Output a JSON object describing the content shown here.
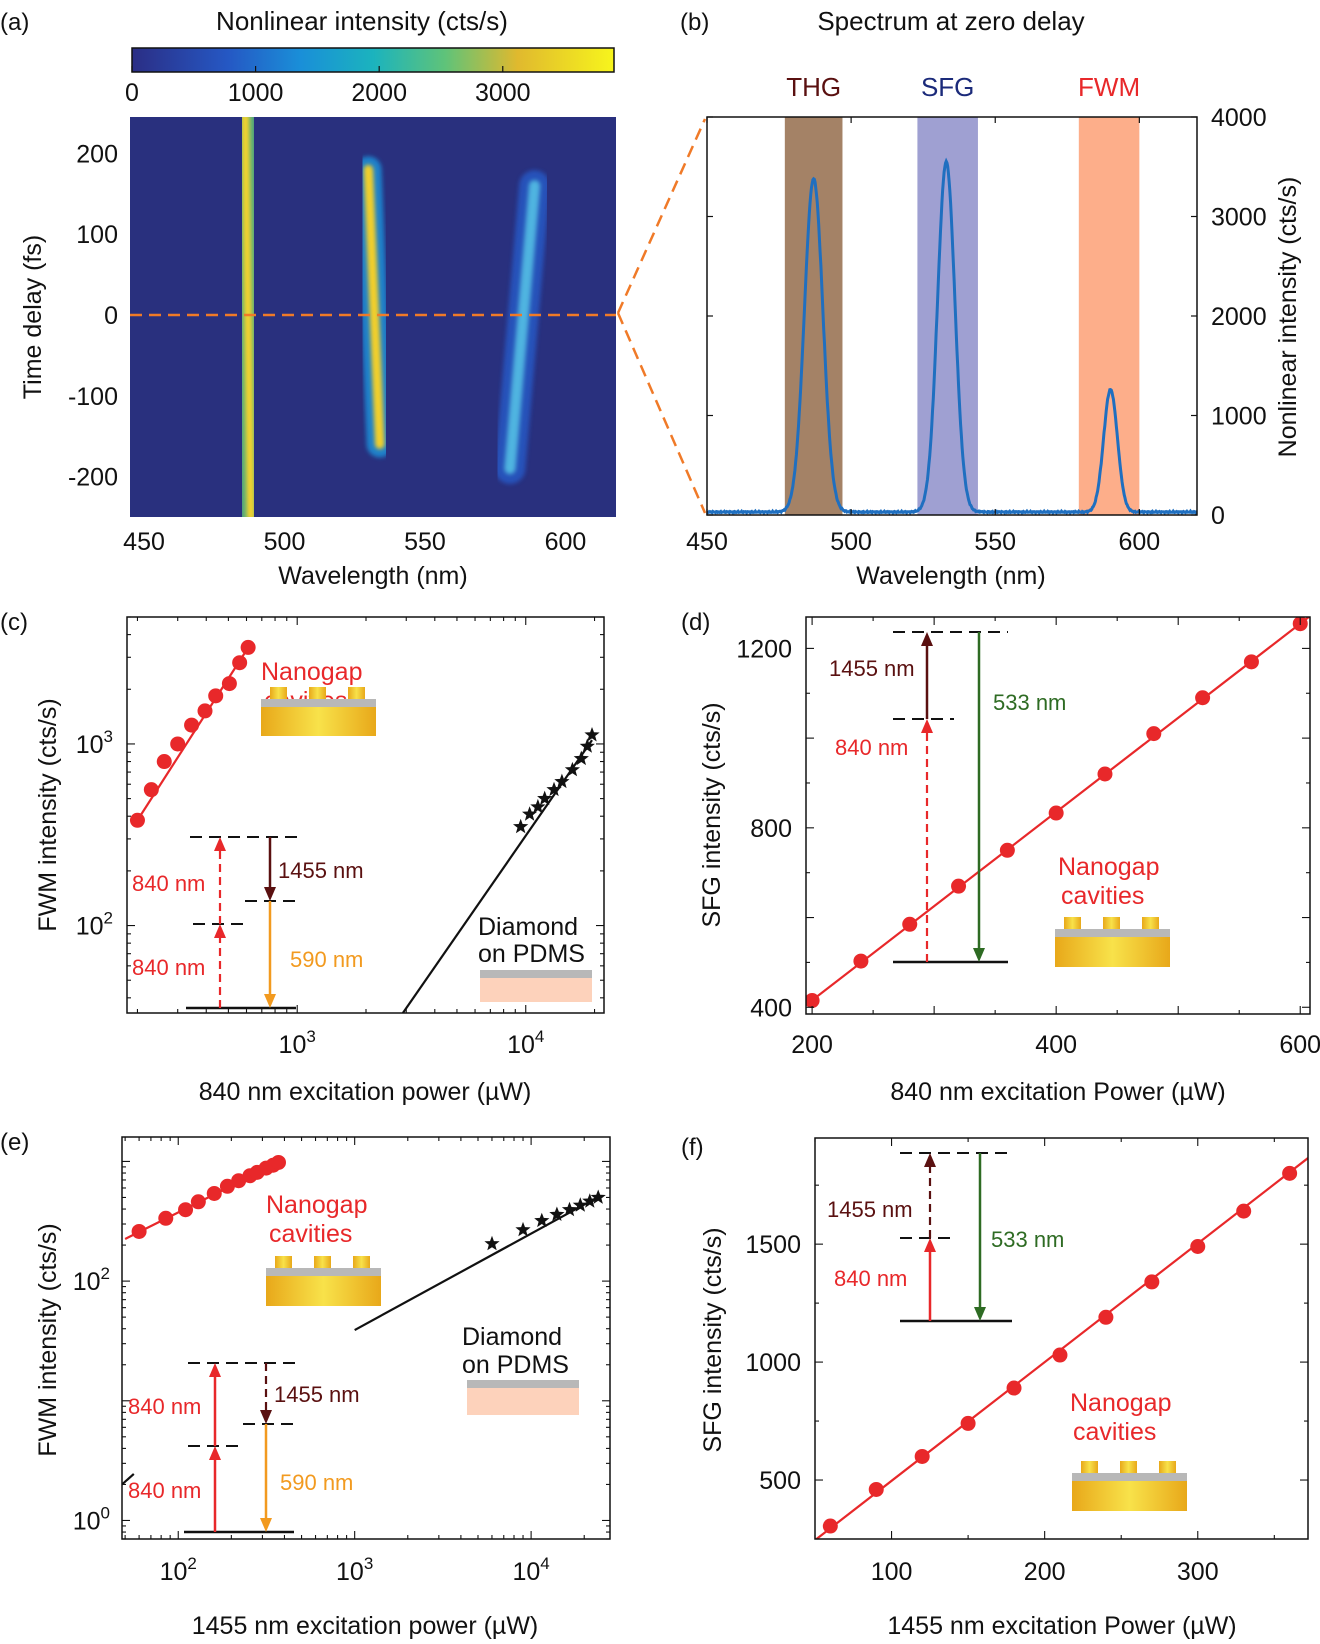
{
  "colors": {
    "red": "#e8282a",
    "black": "#111111",
    "blue": "#1f6fc0",
    "dark_red": "#5a1010",
    "orange": "#f29a1f",
    "green": "#2e6b23",
    "heat_bg": "#29307e",
    "gray": "#b8b8b8",
    "pink": "#fdd2bb",
    "gold": "#e5b632"
  },
  "chart_data": [
    {
      "id": "a",
      "panel_label": "(a)",
      "type": "heatmap",
      "title": "Nonlinear intensity (cts/s)",
      "xlabel": "Wavelength (nm)",
      "ylabel": "Time delay (fs)",
      "xlim": [
        445,
        618
      ],
      "ylim": [
        -250,
        245
      ],
      "x_ticks": [
        "450",
        "500",
        "550",
        "600"
      ],
      "y_ticks": [
        "200",
        "100",
        "0",
        "-100",
        "-200"
      ],
      "colorbar_ticks": [
        "0",
        "1000",
        "2000",
        "3000"
      ],
      "colorbar_range": [
        0,
        3900
      ],
      "zero_delay_marker": 0,
      "bands": [
        {
          "name": "THG",
          "center_nm": 487,
          "delay_range": [
            -250,
            245
          ],
          "peak": 3600,
          "tilt_nm_per_fs": -0.004
        },
        {
          "name": "SFG",
          "center_nm": 532,
          "delay_range": [
            -160,
            180
          ],
          "peak": 3500,
          "tilt_nm_per_fs": -0.012
        },
        {
          "name": "FWM",
          "center_nm": 585,
          "delay_range": [
            -190,
            160
          ],
          "peak": 1600,
          "tilt_nm_per_fs": 0.025
        }
      ]
    },
    {
      "id": "b",
      "panel_label": "(b)",
      "type": "line",
      "title": "Spectrum at zero delay",
      "xlabel": "Wavelength (nm)",
      "ylabel": "Nonlinear intensity (cts/s)",
      "xlim": [
        450,
        620
      ],
      "ylim": [
        0,
        4000
      ],
      "x_ticks": [
        "450",
        "500",
        "550",
        "600"
      ],
      "y_ticks": [
        "0",
        "1000",
        "2000",
        "3000",
        "4000"
      ],
      "baseline": 30,
      "peaks": [
        {
          "label": "THG",
          "center": 487,
          "height": 3350,
          "width_nm": 3.2
        },
        {
          "label": "SFG",
          "center": 533,
          "height": 3520,
          "width_nm": 3.0
        },
        {
          "label": "FWM",
          "center": 590,
          "height": 1230,
          "width_nm": 2.4
        }
      ],
      "shaded_bands": [
        {
          "label": "THG",
          "range": [
            477,
            497
          ],
          "color": "#a48266"
        },
        {
          "label": "SFG",
          "range": [
            523,
            544
          ],
          "color": "#9fa0d2"
        },
        {
          "label": "FWM",
          "range": [
            579,
            600
          ],
          "color": "#fdae8a"
        }
      ],
      "band_label_colors": [
        "#5a1010",
        "#1b2a7a",
        "#e8282a"
      ]
    },
    {
      "id": "c",
      "panel_label": "(c)",
      "type": "scatter",
      "xscale": "log",
      "yscale": "log",
      "xlabel": "840 nm excitation power (µW)",
      "ylabel": "FWM intensity (cts/s)",
      "xlim": [
        180,
        22000
      ],
      "ylim": [
        33,
        5000
      ],
      "x_ticks": [
        {
          "value": 1000,
          "base": "10",
          "exp": "3"
        },
        {
          "value": 10000,
          "base": "10",
          "exp": "4"
        }
      ],
      "y_ticks": [
        {
          "value": 100,
          "base": "10",
          "exp": "2"
        },
        {
          "value": 1000,
          "base": "10",
          "exp": "3"
        }
      ],
      "series": [
        {
          "name": "Nanogap cavities",
          "x": [
            200,
            230,
            262,
            300,
            345,
            395,
            440,
            505,
            560,
            610
          ],
          "y": [
            380,
            560,
            800,
            1000,
            1270,
            1520,
            1840,
            2150,
            2800,
            3400
          ],
          "fit": {
            "x": [
              200,
              620
            ],
            "y": [
              380,
              3500
            ]
          }
        },
        {
          "name": "Diamond on PDMS",
          "x": [
            9500,
            10400,
            11300,
            12100,
            13300,
            14400,
            16000,
            17500,
            18600,
            19500
          ],
          "y": [
            350,
            410,
            450,
            500,
            560,
            620,
            720,
            830,
            970,
            1120
          ],
          "fit": {
            "x": [
              2900,
              19500
            ],
            "y": [
              33,
              1050
            ]
          }
        }
      ],
      "labels": {
        "nanogap_line1": "Nanogap",
        "nanogap_line2": "cavities",
        "diamond_line1": "Diamond",
        "diamond_line2": "on PDMS"
      },
      "energy_diagram": {
        "label_a": "840 nm",
        "label_b": "840 nm",
        "label_c": "1455 nm",
        "label_d": "590 nm"
      }
    },
    {
      "id": "d",
      "panel_label": "(d)",
      "type": "scatter",
      "xlabel": "840 nm excitation Power (µW)",
      "ylabel": "SFG intensity (cts/s)",
      "xlim": [
        195,
        608
      ],
      "ylim": [
        385,
        1270
      ],
      "x_ticks": [
        "200",
        "400",
        "600"
      ],
      "x_ticks_values": [
        200,
        400,
        600
      ],
      "y_ticks": [
        "400",
        "800",
        "1200"
      ],
      "y_ticks_values": [
        400,
        800,
        1200
      ],
      "series": [
        {
          "name": "Nanogap cavities",
          "x": [
            200,
            240,
            280,
            320,
            360,
            400,
            440,
            480,
            520,
            560,
            600
          ],
          "y": [
            415,
            503,
            585,
            670,
            750,
            833,
            920,
            1010,
            1090,
            1170,
            1255
          ],
          "fit": {
            "x": [
              195,
              608
            ],
            "y": [
              405,
              1272
            ]
          }
        }
      ],
      "labels": {
        "nanogap_line1": "Nanogap",
        "nanogap_line2": "cavities"
      },
      "energy_diagram": {
        "label_a": "1455 nm",
        "label_b": "840 nm",
        "label_c": "533 nm"
      }
    },
    {
      "id": "e",
      "panel_label": "(e)",
      "type": "scatter",
      "xscale": "log",
      "yscale": "log",
      "xlabel": "1455 nm excitation power (µW)",
      "ylabel": "FWM intensity (cts/s)",
      "xlim": [
        48,
        28000
      ],
      "ylim": [
        0.7,
        1600
      ],
      "x_ticks": [
        {
          "value": 100,
          "base": "10",
          "exp": "2"
        },
        {
          "value": 1000,
          "base": "10",
          "exp": "3"
        },
        {
          "value": 10000,
          "base": "10",
          "exp": "4"
        }
      ],
      "y_ticks": [
        {
          "value": 1,
          "base": "10",
          "exp": "0"
        },
        {
          "value": 100,
          "base": "10",
          "exp": "2"
        }
      ],
      "series": [
        {
          "name": "Nanogap cavities",
          "x": [
            60,
            85,
            110,
            130,
            160,
            190,
            220,
            255,
            280,
            315,
            345,
            370
          ],
          "y": [
            260,
            335,
            395,
            460,
            540,
            620,
            690,
            760,
            810,
            880,
            930,
            980
          ],
          "fit": {
            "x": [
              50,
              380
            ],
            "y": [
              225,
              1000
            ]
          }
        },
        {
          "name": "Diamond on PDMS",
          "x": [
            6000,
            9000,
            11500,
            14000,
            16500,
            19000,
            21500,
            24000
          ],
          "y": [
            205,
            268,
            320,
            360,
            395,
            430,
            465,
            500
          ],
          "fit_main": {
            "x": [
              1000,
              24000
            ],
            "y": [
              39,
              505
            ]
          },
          "fit_stub": {
            "x": [
              48,
              56
            ],
            "y": [
              2.0,
              2.45
            ]
          }
        }
      ],
      "labels": {
        "nanogap_line1": "Nanogap",
        "nanogap_line2": "cavities",
        "diamond_line1": "Diamond",
        "diamond_line2": "on PDMS"
      },
      "energy_diagram": {
        "label_a": "840 nm",
        "label_b": "840 nm",
        "label_c": "1455 nm",
        "label_d": "590 nm"
      }
    },
    {
      "id": "f",
      "panel_label": "(f)",
      "type": "scatter",
      "xlabel": "1455 nm excitation Power (µW)",
      "ylabel": "SFG intensity (cts/s)",
      "xlim": [
        50,
        372
      ],
      "ylim": [
        250,
        1950
      ],
      "x_ticks": [
        "100",
        "200",
        "300"
      ],
      "x_ticks_values": [
        100,
        200,
        300
      ],
      "y_ticks": [
        "500",
        "1000",
        "1500"
      ],
      "y_ticks_values": [
        500,
        1000,
        1500
      ],
      "series": [
        {
          "name": "Nanogap cavities",
          "x": [
            60,
            90,
            120,
            150,
            180,
            210,
            240,
            270,
            300,
            330,
            360
          ],
          "y": [
            305,
            460,
            600,
            740,
            890,
            1030,
            1190,
            1340,
            1490,
            1640,
            1800
          ],
          "fit": {
            "x": [
              50,
              372
            ],
            "y": [
              245,
              1865
            ]
          }
        }
      ],
      "labels": {
        "nanogap_line1": "Nanogap",
        "nanogap_line2": "cavities"
      },
      "energy_diagram": {
        "label_a": "1455 nm",
        "label_b": "840 nm",
        "label_c": "533 nm"
      }
    }
  ]
}
